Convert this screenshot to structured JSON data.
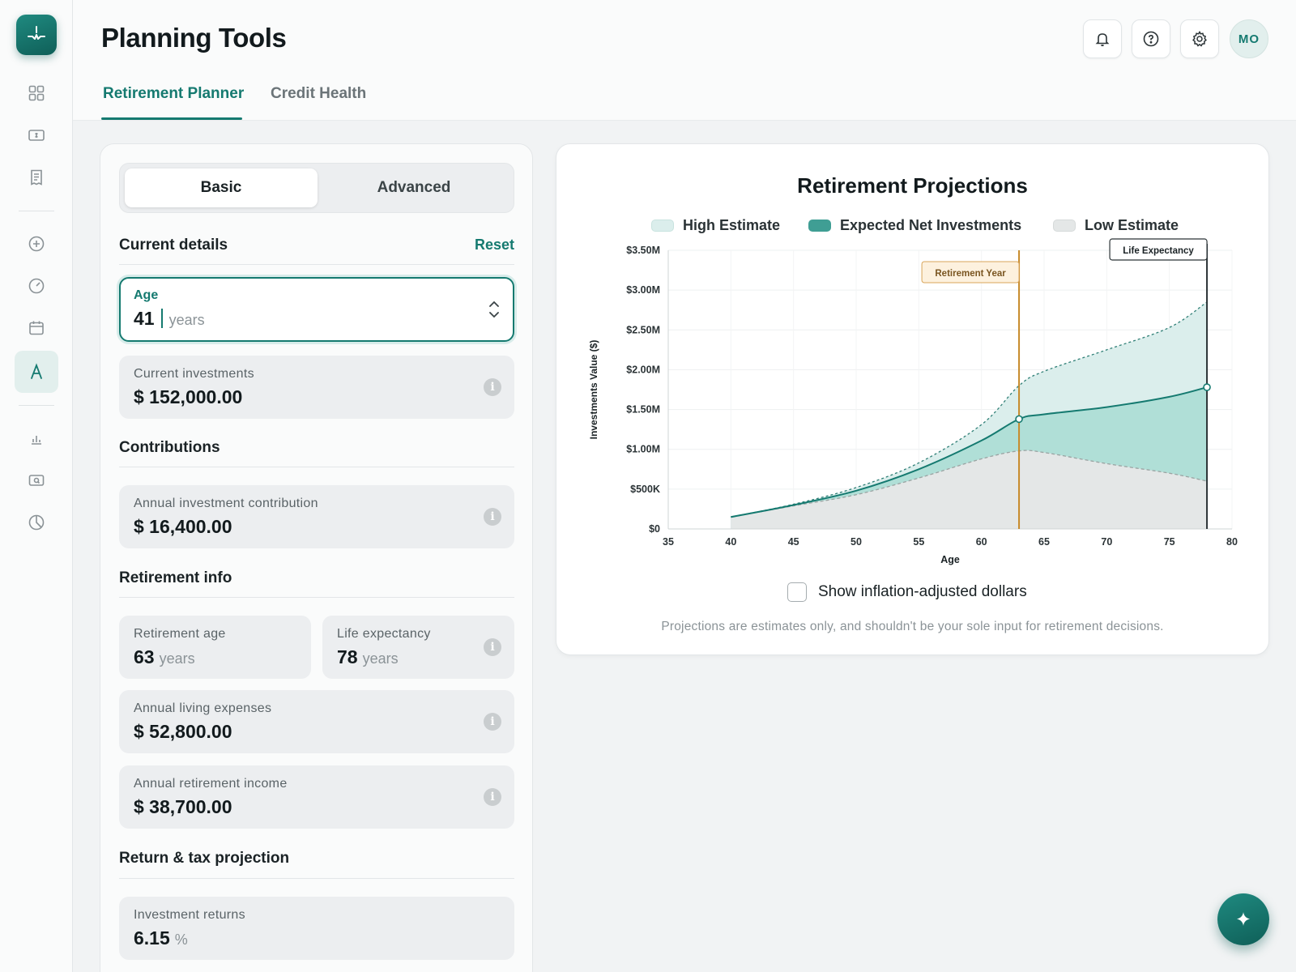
{
  "header": {
    "title": "Planning Tools",
    "tabs": [
      {
        "label": "Retirement Planner",
        "active": true
      },
      {
        "label": "Credit Health",
        "active": false
      }
    ],
    "avatar_initials": "MO"
  },
  "sidebar": {
    "icons": [
      "app-logo-icon",
      "dashboard-grid-icon",
      "dollar-bill-icon",
      "receipt-icon",
      "plus-circle-icon",
      "gauge-icon",
      "calendar-icon",
      "planning-tools-icon",
      "bar-chart-icon",
      "search-money-icon",
      "pie-chart-icon"
    ],
    "active": "planning-tools-icon"
  },
  "form": {
    "mode_tabs": {
      "basic": "Basic",
      "advanced": "Advanced"
    },
    "current_details": {
      "title": "Current details",
      "reset_label": "Reset",
      "age": {
        "label": "Age",
        "value": "41",
        "unit": "years"
      },
      "current_investments": {
        "label": "Current investments",
        "value": "$ 152,000.00"
      }
    },
    "contributions": {
      "title": "Contributions",
      "annual_contribution": {
        "label": "Annual investment contribution",
        "value": "$ 16,400.00"
      }
    },
    "retirement_info": {
      "title": "Retirement info",
      "retirement_age": {
        "label": "Retirement age",
        "value": "63",
        "unit": "years"
      },
      "life_expectancy": {
        "label": "Life expectancy",
        "value": "78",
        "unit": "years"
      },
      "living_expenses": {
        "label": "Annual living expenses",
        "value": "$ 52,800.00"
      },
      "retirement_income": {
        "label": "Annual retirement income",
        "value": "$ 38,700.00"
      }
    },
    "return_tax": {
      "title": "Return & tax projection",
      "investment_returns": {
        "label": "Investment returns",
        "value": "6.15",
        "unit": "%"
      }
    },
    "info_glyph": "i"
  },
  "chart_panel": {
    "inflation_label": "Show inflation-adjusted dollars",
    "inflation_checked": false,
    "disclaimer": "Projections are estimates only, and shouldn't be your sole input for retirement decisions."
  },
  "colors": {
    "accent": "#157a70",
    "high_fill": "#dbeeec",
    "expected_fill": "#a8dcd4",
    "low_fill": "#e4e7e7",
    "expected_line": "#157a70",
    "retirement_line": "#c78a2a",
    "life_line": "#2b3336"
  },
  "chart_data": {
    "type": "area",
    "title": "Retirement Projections",
    "xlabel": "Age",
    "ylabel": "Investments Value ($)",
    "xlim": [
      35,
      80
    ],
    "ylim": [
      0,
      3500000
    ],
    "x_ticks": [
      35,
      40,
      45,
      50,
      55,
      60,
      65,
      70,
      75,
      80
    ],
    "y_ticks": [
      {
        "value": 0,
        "label": "$0"
      },
      {
        "value": 500000,
        "label": "$500K"
      },
      {
        "value": 1000000,
        "label": "$1.00M"
      },
      {
        "value": 1500000,
        "label": "$1.50M"
      },
      {
        "value": 2000000,
        "label": "$2.00M"
      },
      {
        "value": 2500000,
        "label": "$2.50M"
      },
      {
        "value": 3000000,
        "label": "$3.00M"
      },
      {
        "value": 3500000,
        "label": "$3.50M"
      }
    ],
    "legend_position": "top",
    "grid": true,
    "series": [
      {
        "name": "High Estimate",
        "x": [
          40,
          45,
          50,
          55,
          60,
          63,
          65,
          70,
          75,
          78
        ],
        "values": [
          150000,
          310000,
          520000,
          830000,
          1310000,
          1800000,
          1980000,
          2250000,
          2530000,
          2850000
        ]
      },
      {
        "name": "Expected Net Investments",
        "x": [
          40,
          45,
          50,
          55,
          60,
          63,
          65,
          70,
          75,
          78
        ],
        "values": [
          150000,
          300000,
          480000,
          750000,
          1110000,
          1380000,
          1440000,
          1530000,
          1660000,
          1780000
        ]
      },
      {
        "name": "Low Estimate",
        "x": [
          40,
          45,
          50,
          55,
          60,
          63,
          65,
          70,
          75,
          78
        ],
        "values": [
          150000,
          290000,
          430000,
          640000,
          880000,
          980000,
          960000,
          820000,
          700000,
          600000
        ]
      }
    ],
    "markers": [
      {
        "label": "Retirement Year",
        "x": 63
      },
      {
        "label": "Life Expectancy",
        "x": 78
      }
    ]
  }
}
